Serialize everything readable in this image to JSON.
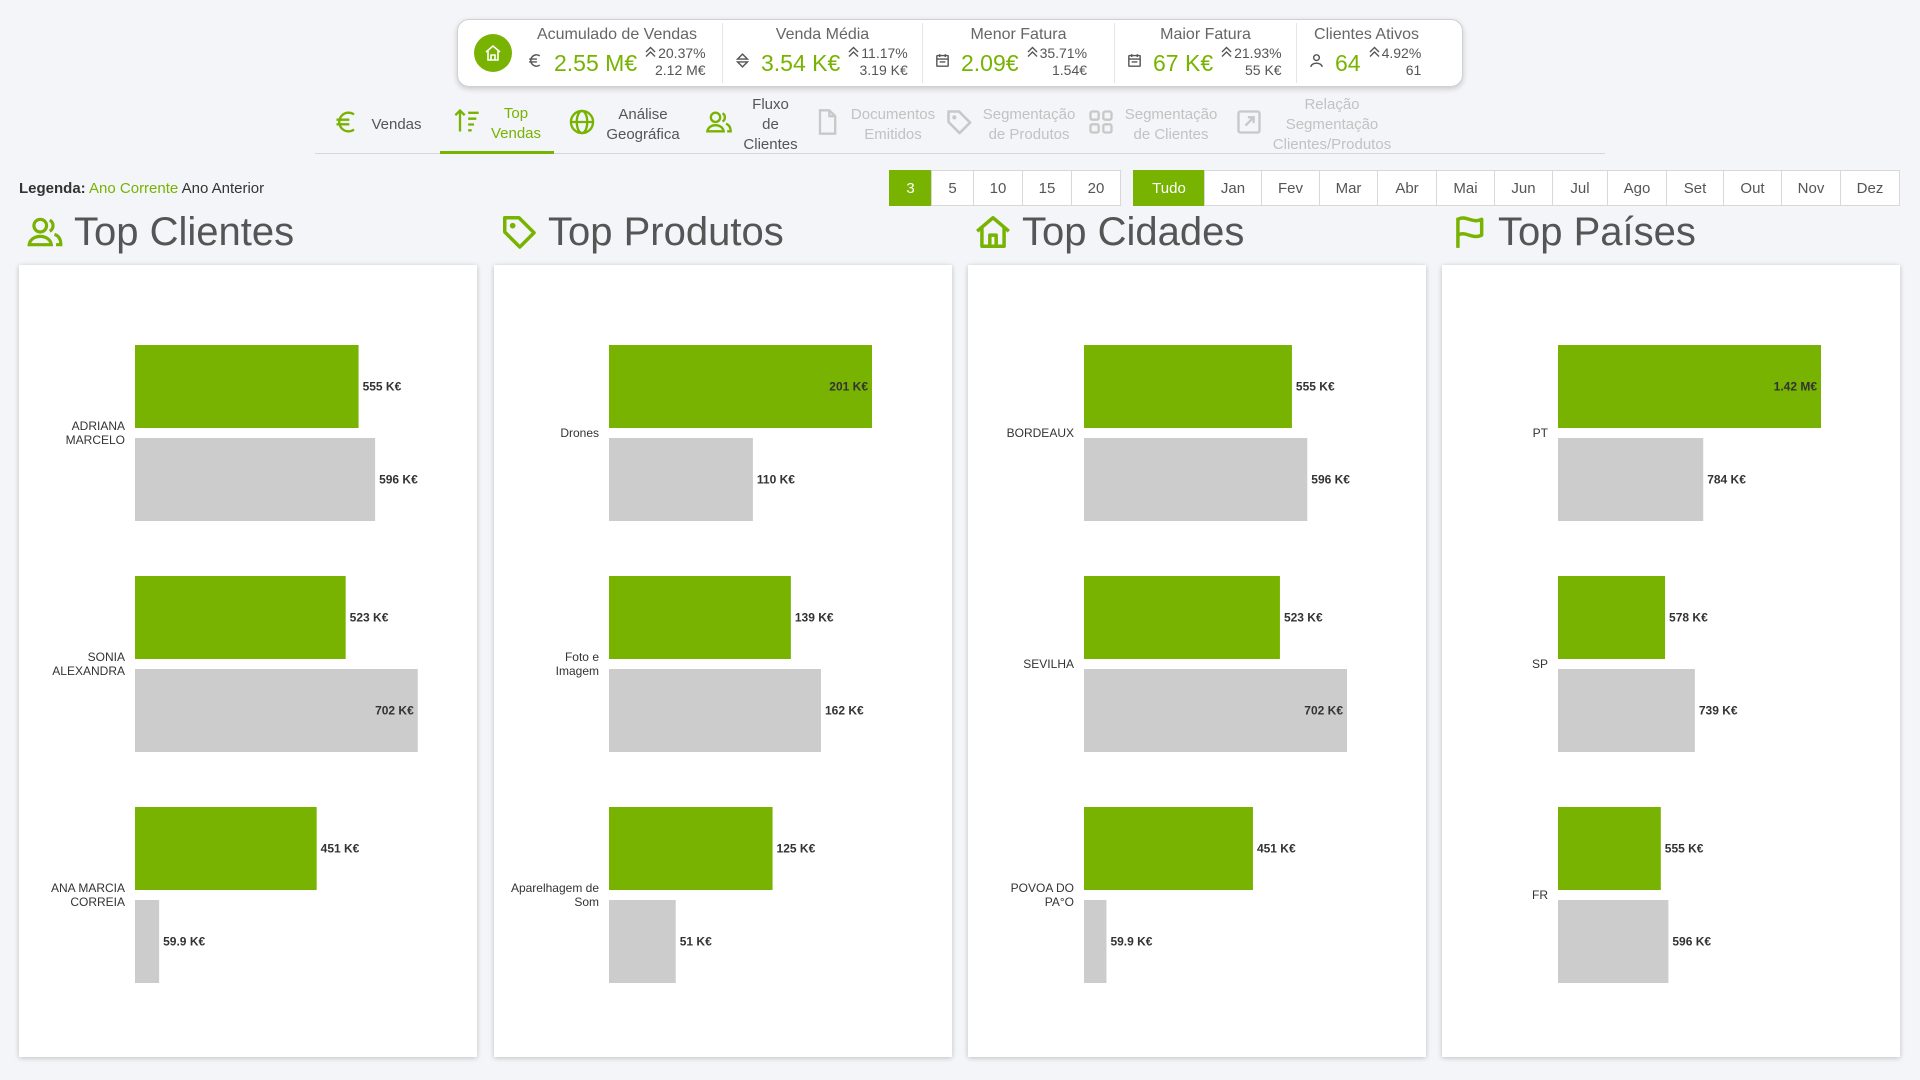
{
  "colors": {
    "accent": "#77b300",
    "previous": "#cccccc"
  },
  "kpis": [
    {
      "title": "Acumulado de Vendas",
      "icon": "euro-icon",
      "value": "2.55 M€",
      "pct": "20.37%",
      "prev": "2.12 M€"
    },
    {
      "title": "Venda Média",
      "icon": "diamond-arrows-icon",
      "value": "3.54 K€",
      "pct": "11.17%",
      "prev": "3.19 K€"
    },
    {
      "title": "Menor Fatura",
      "icon": "calendar-icon",
      "value": "2.09€",
      "pct": "35.71%",
      "prev": "1.54€"
    },
    {
      "title": "Maior Fatura",
      "icon": "calendar-icon",
      "value": "67 K€",
      "pct": "21.93%",
      "prev": "55 K€"
    },
    {
      "title": "Clientes Ativos",
      "icon": "person-icon",
      "value": "64",
      "pct": "4.92%",
      "prev": "61"
    }
  ],
  "nav": [
    {
      "label": "Vendas",
      "icon": "euro-icon",
      "state": "normal"
    },
    {
      "label": "Top\nVendas",
      "icon": "sort-icon",
      "state": "active"
    },
    {
      "label": "Análise\nGeográfica",
      "icon": "globe-icon",
      "state": "normal"
    },
    {
      "label": "Fluxo de\nClientes",
      "icon": "users-icon",
      "state": "normal"
    },
    {
      "label": "Documentos\nEmitidos",
      "icon": "document-icon",
      "state": "disabled"
    },
    {
      "label": "Segmentação\nde Produtos",
      "icon": "tag-icon",
      "state": "disabled"
    },
    {
      "label": "Segmentação\nde Clientes",
      "icon": "grid-icon",
      "state": "disabled"
    },
    {
      "label": "Relação Segmentação\nClientes/Produtos",
      "icon": "link-out-icon",
      "state": "disabled"
    }
  ],
  "legend": {
    "label": "Legenda:",
    "current": "Ano Corrente",
    "previous": "Ano Anterior"
  },
  "top_n": {
    "options": [
      "3",
      "5",
      "10",
      "15",
      "20"
    ],
    "selected": "3"
  },
  "months": {
    "options": [
      "Tudo",
      "Jan",
      "Fev",
      "Mar",
      "Abr",
      "Mai",
      "Jun",
      "Jul",
      "Ago",
      "Set",
      "Out",
      "Nov",
      "Dez"
    ],
    "selected": "Tudo"
  },
  "sections": [
    {
      "title": "Top Clientes",
      "icon": "users-icon"
    },
    {
      "title": "Top Produtos",
      "icon": "tag-icon"
    },
    {
      "title": "Top Cidades",
      "icon": "house-icon"
    },
    {
      "title": "Top Países",
      "icon": "flag-icon"
    }
  ],
  "chart_data": [
    {
      "type": "bar",
      "orientation": "horizontal",
      "title": "Top Clientes",
      "categories": [
        "ADRIANA MARCELO",
        "SONIA ALEXANDRA",
        "ANA MARCIA CORREIA"
      ],
      "series": [
        {
          "name": "Ano Corrente",
          "values": [
            555,
            523,
            451
          ],
          "labels": [
            "555 K€",
            "523 K€",
            "451 K€"
          ]
        },
        {
          "name": "Ano Anterior",
          "values": [
            596,
            702,
            59.9
          ],
          "labels": [
            "596 K€",
            "702 K€",
            "59.9 K€"
          ]
        }
      ],
      "xmax": 710
    },
    {
      "type": "bar",
      "orientation": "horizontal",
      "title": "Top Produtos",
      "categories": [
        "Drones",
        "Foto e Imagem",
        "Aparelhagem de Som"
      ],
      "series": [
        {
          "name": "Ano Corrente",
          "values": [
            201,
            139,
            125
          ],
          "labels": [
            "201 K€",
            "139 K€",
            "125 K€"
          ]
        },
        {
          "name": "Ano Anterior",
          "values": [
            110,
            162,
            51
          ],
          "labels": [
            "110 K€",
            "162 K€",
            "51 K€"
          ]
        }
      ],
      "xmax": 201
    },
    {
      "type": "bar",
      "orientation": "horizontal",
      "title": "Top Cidades",
      "categories": [
        "BORDEAUX",
        "SEVILHA",
        "POVOA DO PA°O"
      ],
      "series": [
        {
          "name": "Ano Corrente",
          "values": [
            555,
            523,
            451
          ],
          "labels": [
            "555 K€",
            "523 K€",
            "451 K€"
          ]
        },
        {
          "name": "Ano Anterior",
          "values": [
            596,
            702,
            59.9
          ],
          "labels": [
            "596 K€",
            "702 K€",
            "59.9 K€"
          ]
        }
      ],
      "xmax": 702
    },
    {
      "type": "bar",
      "orientation": "horizontal",
      "title": "Top Países",
      "categories": [
        "PT",
        "SP",
        "FR"
      ],
      "series": [
        {
          "name": "Ano Corrente",
          "values": [
            1420,
            578,
            555
          ],
          "labels": [
            "1.42 M€",
            "578 K€",
            "555 K€"
          ]
        },
        {
          "name": "Ano Anterior",
          "values": [
            784,
            739,
            596
          ],
          "labels": [
            "784 K€",
            "739 K€",
            "596 K€"
          ]
        }
      ],
      "xmax": 1420
    }
  ]
}
